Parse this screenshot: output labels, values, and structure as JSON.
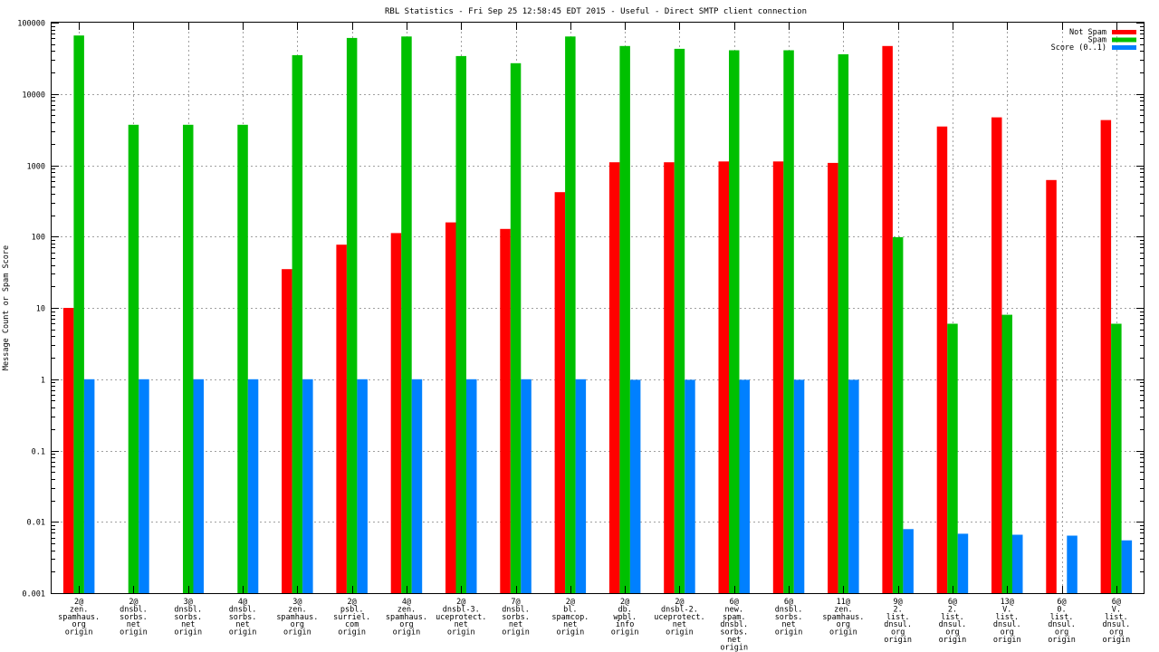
{
  "chart_data": {
    "type": "bar",
    "title": "RBL Statistics - Fri Sep 25 12:58:45 EDT 2015 - Useful - Direct SMTP client connection",
    "xlabel": "",
    "ylabel": "Message Count or Spam Score",
    "yscale": "log",
    "ylim": [
      0.001,
      100000
    ],
    "yticks": [
      "0.001",
      "0.01",
      "0.1",
      "1",
      "10",
      "100",
      "1000",
      "10000",
      "100000"
    ],
    "legend_position": "top-right",
    "categories": [
      [
        "2@",
        "zen.",
        "spamhaus.",
        "org",
        "origin"
      ],
      [
        "2@",
        "dnsbl.",
        "sorbs.",
        "net",
        "origin"
      ],
      [
        "3@",
        "dnsbl.",
        "sorbs.",
        "net",
        "origin"
      ],
      [
        "4@",
        "dnsbl.",
        "sorbs.",
        "net",
        "origin"
      ],
      [
        "3@",
        "zen.",
        "spamhaus.",
        "org",
        "origin"
      ],
      [
        "2@",
        "psbl.",
        "surriel.",
        "com",
        "origin"
      ],
      [
        "4@",
        "zen.",
        "spamhaus.",
        "org",
        "origin"
      ],
      [
        "2@",
        "dnsbl-3.",
        "uceprotect.",
        "net",
        "origin"
      ],
      [
        "7@",
        "dnsbl.",
        "sorbs.",
        "net",
        "origin"
      ],
      [
        "2@",
        "bl.",
        "spamcop.",
        "net",
        "origin"
      ],
      [
        "2@",
        "db.",
        "wpbl.",
        "info",
        "origin"
      ],
      [
        "2@",
        "dnsbl-2.",
        "uceprotect.",
        "net",
        "origin"
      ],
      [
        "6@",
        "new.",
        "spam.",
        "dnsbl.",
        "sorbs.",
        "net",
        "origin"
      ],
      [
        "6@",
        "dnsbl.",
        "sorbs.",
        "net",
        "origin"
      ],
      [
        "11@",
        "zen.",
        "spamhaus.",
        "org",
        "origin"
      ],
      [
        "9@",
        "2.",
        "list.",
        "dnsul.",
        "org",
        "origin"
      ],
      [
        "6@",
        "2.",
        "list.",
        "dnsul.",
        "org",
        "origin"
      ],
      [
        "13@",
        "V.",
        "list.",
        "dnsul.",
        "org",
        "origin"
      ],
      [
        "6@",
        "0.",
        "list.",
        "dnsul.",
        "org",
        "origin"
      ],
      [
        "6@",
        "V.",
        "list.",
        "dnsul.",
        "org",
        "origin"
      ]
    ],
    "series": [
      {
        "name": "Not Spam",
        "color": "#ff0000",
        "values": [
          10,
          null,
          null,
          null,
          35,
          77,
          112,
          158,
          128,
          420,
          1100,
          1100,
          1130,
          1130,
          1080,
          47000,
          3500,
          4700,
          620,
          4300
        ]
      },
      {
        "name": "Spam",
        "color": "#00c000",
        "values": [
          66000,
          3700,
          3700,
          3700,
          35000,
          61000,
          64000,
          34000,
          27000,
          64000,
          47000,
          43000,
          41000,
          41000,
          36000,
          98,
          6,
          8,
          null,
          6
        ]
      },
      {
        "name": "Score (0..1)",
        "color": "#0080ff",
        "values": [
          1,
          1,
          1,
          1,
          1,
          1,
          1,
          1,
          1,
          1,
          0.98,
          0.98,
          0.98,
          0.98,
          0.98,
          0.0079,
          0.0068,
          0.0066,
          0.0064,
          0.0055
        ]
      }
    ]
  }
}
